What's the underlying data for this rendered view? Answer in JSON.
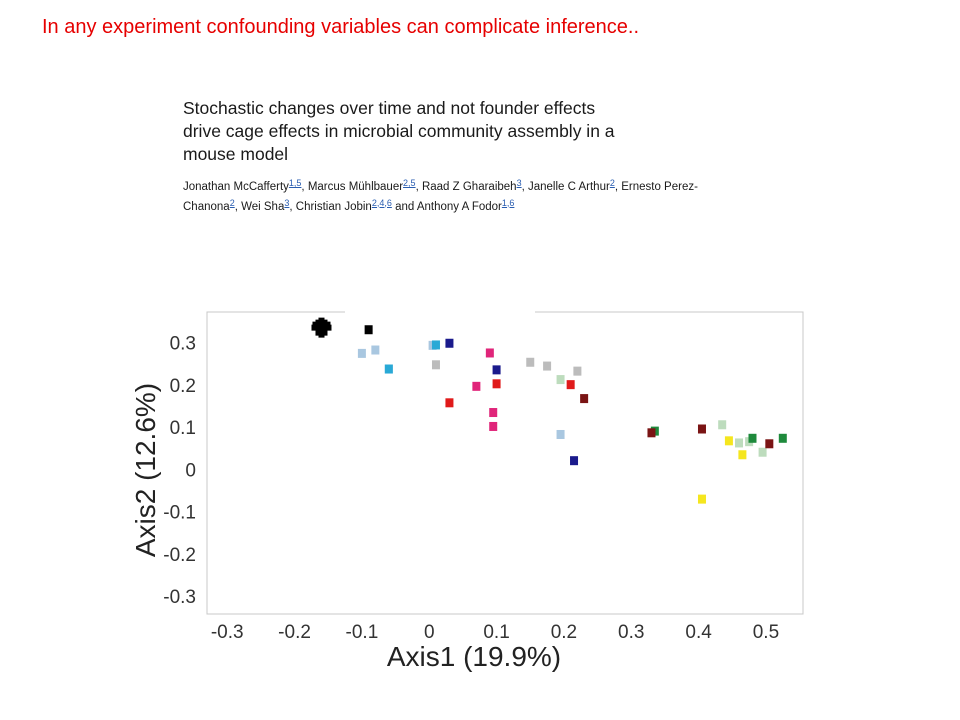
{
  "slide": {
    "heading": "In any experiment confounding variables can complicate inference.."
  },
  "paper": {
    "title": "Stochastic changes over time and not founder effects\ndrive cage effects in microbial community assembly in a\nmouse model",
    "authors": [
      {
        "name": "Jonathan McCafferty",
        "aff": "1,5",
        "sep": ", "
      },
      {
        "name": "Marcus Mühlbauer",
        "aff": "2,5",
        "sep": ", "
      },
      {
        "name": "Raad Z Gharaibeh",
        "aff": "3",
        "sep": ", "
      },
      {
        "name": "Janelle C Arthur",
        "aff": "2",
        "sep": ", "
      },
      {
        "name": "Ernesto Perez-Chanona",
        "aff": "2",
        "sep": ", "
      },
      {
        "name": "Wei Sha",
        "aff": "3",
        "sep": ", "
      },
      {
        "name": "Christian Jobin",
        "aff": "2,4,6",
        "sep": " and "
      },
      {
        "name": "Anthony A Fodor",
        "aff": "1,6",
        "sep": ""
      }
    ]
  },
  "colors": {
    "black": "#000000",
    "lightblue": "#a9c7e0",
    "cyan": "#29a9d6",
    "navy": "#1a1a8c",
    "gray": "#bcbcbc",
    "pink": "#e0257a",
    "red": "#e01a1a",
    "lightgreen": "#bddcbd",
    "darkred": "#7a1414",
    "green": "#1e8a3c",
    "yellow": "#f5e61e",
    "heading": "#e60000"
  },
  "chart_data": {
    "type": "scatter",
    "xlabel": "Axis1 (19.9%)",
    "ylabel": "Axis2 (12.6%)",
    "xlim": [
      -0.33,
      0.555
    ],
    "ylim": [
      -0.34,
      0.375
    ],
    "x_ticks": [
      "-0.3",
      "-0.2",
      "-0.1",
      "0",
      "0.1",
      "0.2",
      "0.3",
      "0.4",
      "0.5"
    ],
    "y_ticks": [
      "0.3",
      "0.2",
      "0.1",
      "0",
      "-0.1",
      "-0.2",
      "-0.3"
    ],
    "x_tick_values": [
      -0.3,
      -0.2,
      -0.1,
      0,
      0.1,
      0.2,
      0.3,
      0.4,
      0.5
    ],
    "y_tick_values": [
      0.3,
      0.2,
      0.1,
      0,
      -0.1,
      -0.2,
      -0.3
    ],
    "grid": false,
    "points": [
      {
        "x": -0.16,
        "y": 0.338,
        "c": "black",
        "shape": "plus"
      },
      {
        "x": -0.09,
        "y": 0.333,
        "c": "black"
      },
      {
        "x": -0.1,
        "y": 0.277,
        "c": "lightblue"
      },
      {
        "x": -0.08,
        "y": 0.285,
        "c": "lightblue"
      },
      {
        "x": -0.06,
        "y": 0.24,
        "c": "lightblue"
      },
      {
        "x": -0.06,
        "y": 0.24,
        "c": "cyan"
      },
      {
        "x": 0.005,
        "y": 0.296,
        "c": "lightblue"
      },
      {
        "x": 0.01,
        "y": 0.297,
        "c": "cyan"
      },
      {
        "x": 0.03,
        "y": 0.301,
        "c": "navy"
      },
      {
        "x": 0.01,
        "y": 0.25,
        "c": "gray"
      },
      {
        "x": 0.09,
        "y": 0.278,
        "c": "pink"
      },
      {
        "x": 0.07,
        "y": 0.199,
        "c": "pink"
      },
      {
        "x": 0.1,
        "y": 0.238,
        "c": "navy"
      },
      {
        "x": 0.1,
        "y": 0.205,
        "c": "red"
      },
      {
        "x": 0.03,
        "y": 0.16,
        "c": "red"
      },
      {
        "x": 0.095,
        "y": 0.137,
        "c": "pink"
      },
      {
        "x": 0.095,
        "y": 0.104,
        "c": "pink"
      },
      {
        "x": 0.15,
        "y": 0.256,
        "c": "gray"
      },
      {
        "x": 0.175,
        "y": 0.247,
        "c": "gray"
      },
      {
        "x": 0.195,
        "y": 0.215,
        "c": "lightgreen"
      },
      {
        "x": 0.22,
        "y": 0.235,
        "c": "gray"
      },
      {
        "x": 0.21,
        "y": 0.203,
        "c": "red"
      },
      {
        "x": 0.23,
        "y": 0.17,
        "c": "darkred"
      },
      {
        "x": 0.195,
        "y": 0.085,
        "c": "lightblue"
      },
      {
        "x": 0.215,
        "y": 0.023,
        "c": "navy"
      },
      {
        "x": 0.335,
        "y": 0.093,
        "c": "green"
      },
      {
        "x": 0.33,
        "y": 0.089,
        "c": "darkred"
      },
      {
        "x": 0.405,
        "y": 0.098,
        "c": "darkred"
      },
      {
        "x": 0.435,
        "y": 0.108,
        "c": "lightgreen"
      },
      {
        "x": 0.445,
        "y": 0.07,
        "c": "yellow"
      },
      {
        "x": 0.46,
        "y": 0.065,
        "c": "lightgreen"
      },
      {
        "x": 0.465,
        "y": 0.037,
        "c": "yellow"
      },
      {
        "x": 0.475,
        "y": 0.068,
        "c": "lightgreen"
      },
      {
        "x": 0.48,
        "y": 0.076,
        "c": "green"
      },
      {
        "x": 0.495,
        "y": 0.043,
        "c": "lightgreen"
      },
      {
        "x": 0.505,
        "y": 0.063,
        "c": "darkred"
      },
      {
        "x": 0.525,
        "y": 0.076,
        "c": "green"
      },
      {
        "x": 0.405,
        "y": -0.068,
        "c": "yellow"
      }
    ]
  }
}
